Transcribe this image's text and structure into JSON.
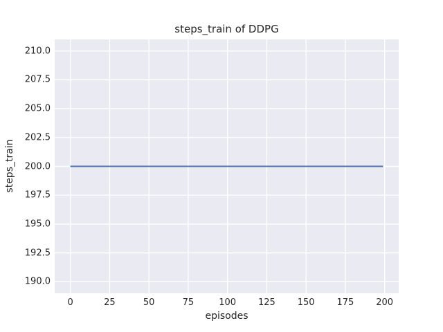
{
  "chart_data": {
    "type": "line",
    "title": "steps_train of DDPG",
    "xlabel": "episodes",
    "ylabel": "steps_train",
    "xlim": [
      -9.95,
      208.95
    ],
    "ylim": [
      189.0,
      211.0
    ],
    "xticks": [
      0,
      25,
      50,
      75,
      100,
      125,
      150,
      175,
      200
    ],
    "xtick_labels": [
      "0",
      "25",
      "50",
      "75",
      "100",
      "125",
      "150",
      "175",
      "200"
    ],
    "yticks": [
      190.0,
      192.5,
      195.0,
      197.5,
      200.0,
      202.5,
      205.0,
      207.5,
      210.0
    ],
    "ytick_labels": [
      "190.0",
      "192.5",
      "195.0",
      "197.5",
      "200.0",
      "202.5",
      "205.0",
      "207.5",
      "210.0"
    ],
    "grid": true,
    "legend_position": "none",
    "series": [
      {
        "name": "steps_train",
        "color": "#4c72b0",
        "x": [
          0,
          199
        ],
        "y": [
          200,
          200
        ],
        "note": "constant value 200 across all episodes"
      }
    ],
    "colors": {
      "axes_background": "#eaeaf2",
      "gridline": "#ffffff",
      "figure_background": "#ffffff",
      "text": "#262626",
      "line": "#4c72b0"
    }
  }
}
